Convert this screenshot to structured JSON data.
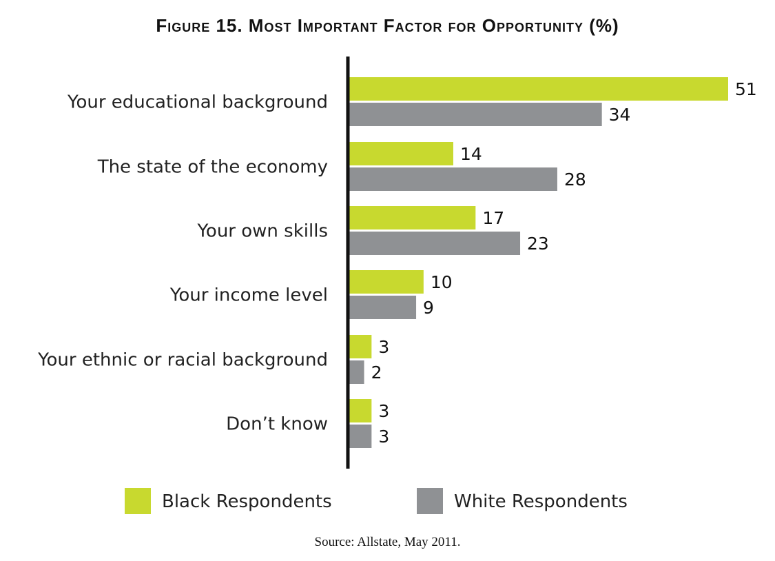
{
  "chart_data": {
    "type": "bar",
    "orientation": "horizontal",
    "title": "Figure 15. Most Important Factor for Opportunity (%)",
    "categories": [
      "Your educational background",
      "The state of the economy",
      "Your own skills",
      "Your income level",
      "Your ethnic or racial background",
      "Don’t know"
    ],
    "series": [
      {
        "name": "Black Respondents",
        "color": "#c8d92f",
        "values": [
          51,
          14,
          17,
          10,
          3,
          3
        ]
      },
      {
        "name": "White Respondents",
        "color": "#8f9194",
        "values": [
          34,
          28,
          23,
          9,
          2,
          3
        ]
      }
    ],
    "xlim": [
      0,
      51
    ],
    "grid": false,
    "legend_position": "bottom",
    "data_labels": true
  },
  "source": "Source: Allstate, May 2011."
}
